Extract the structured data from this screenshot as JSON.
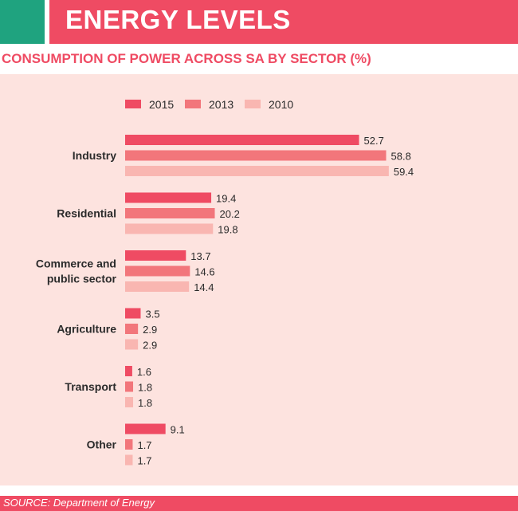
{
  "header": {
    "title": "ENERGY LEVELS"
  },
  "subtitle": "CONSUMPTION OF POWER ACROSS SA BY SECTOR (%)",
  "source": "SOURCE: Department of Energy",
  "colors": {
    "accent": "#1fa37f",
    "brand": "#ef4b63",
    "panel": "#fde3df"
  },
  "chart_data": {
    "type": "bar",
    "orientation": "horizontal",
    "categories": [
      [
        "Industry"
      ],
      [
        "Residential"
      ],
      [
        "Commerce and",
        "public sector"
      ],
      [
        "Agriculture"
      ],
      [
        "Transport"
      ],
      [
        "Other"
      ]
    ],
    "series": [
      {
        "name": "2015",
        "color": "#ef4b63",
        "values": [
          52.7,
          19.4,
          13.7,
          3.5,
          1.6,
          9.1
        ]
      },
      {
        "name": "2013",
        "color": "#f2767b",
        "values": [
          58.8,
          20.2,
          14.6,
          2.9,
          1.8,
          1.7
        ]
      },
      {
        "name": "2010",
        "color": "#f9b6b1",
        "values": [
          59.4,
          19.8,
          14.4,
          2.9,
          1.8,
          1.7
        ]
      }
    ],
    "value_labels": [
      [
        "52.7",
        "58.8",
        "59.4"
      ],
      [
        "19.4",
        "20.2",
        "19.8"
      ],
      [
        "13.7",
        "14.6",
        "14.4"
      ],
      [
        "3.5",
        "2.9",
        "2.9"
      ],
      [
        "1.6",
        "1.8",
        "1.8"
      ],
      [
        "9.1",
        "1.7",
        "1.7"
      ]
    ],
    "legend_position": "top",
    "grid": false,
    "xlim": [
      0,
      60
    ]
  }
}
